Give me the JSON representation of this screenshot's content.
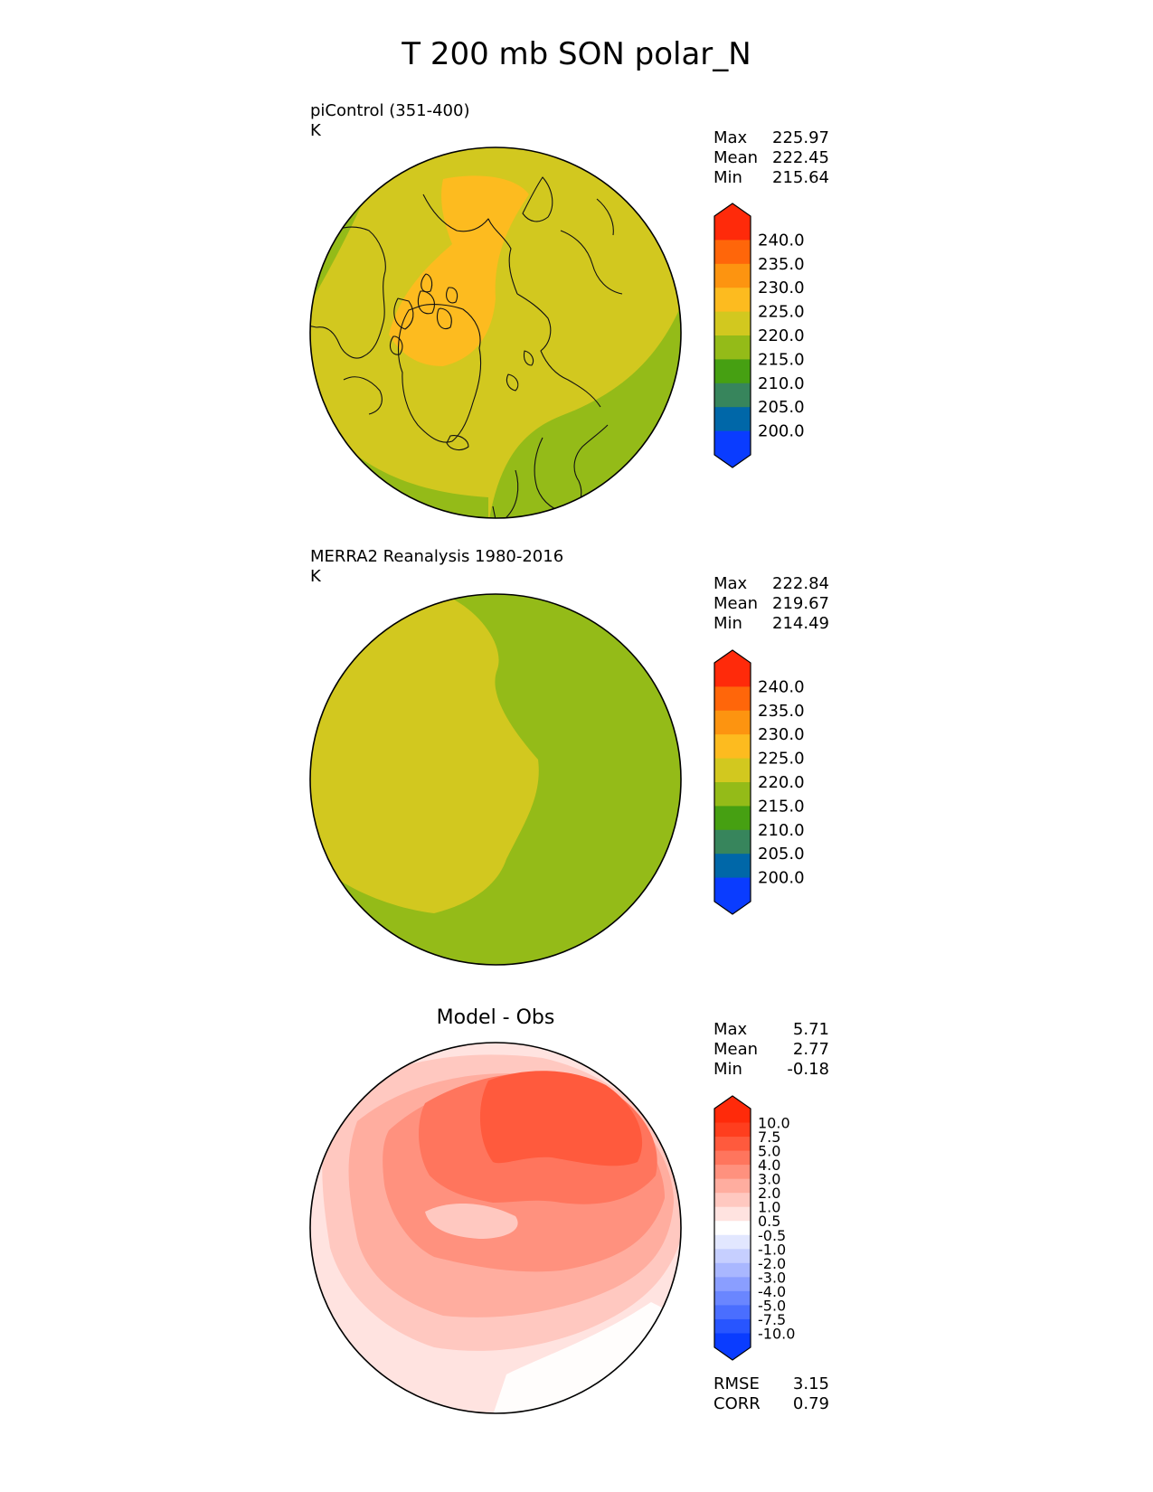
{
  "figure": {
    "title": "T 200 mb SON polar_N"
  },
  "panels": [
    {
      "title": "piControl (351-400)",
      "units": "K",
      "stats": [
        {
          "label": "Max",
          "value": "225.97"
        },
        {
          "label": "Mean",
          "value": "222.45"
        },
        {
          "label": "Min",
          "value": "215.64"
        }
      ]
    },
    {
      "title": "MERRA2 Reanalysis 1980-2016",
      "units": "K",
      "stats": [
        {
          "label": "Max",
          "value": "222.84"
        },
        {
          "label": "Mean",
          "value": "219.67"
        },
        {
          "label": "Min",
          "value": "214.49"
        }
      ]
    },
    {
      "title": "Model - Obs",
      "units": "",
      "stats": [
        {
          "label": "Max",
          "value": "5.71"
        },
        {
          "label": "Mean",
          "value": "2.77"
        },
        {
          "label": "Min",
          "value": "-0.18"
        }
      ],
      "metrics": [
        {
          "label": "RMSE",
          "value": "3.15"
        },
        {
          "label": "CORR",
          "value": "0.79"
        }
      ]
    }
  ],
  "chart_data": [
    {
      "type": "heatmap",
      "projection": "north-polar-stereographic",
      "colorbar": {
        "levels": [
          200.0,
          205.0,
          210.0,
          215.0,
          220.0,
          225.0,
          230.0,
          235.0,
          240.0
        ],
        "tick_labels": [
          "200.0",
          "205.0",
          "210.0",
          "215.0",
          "220.0",
          "225.0",
          "230.0",
          "235.0",
          "240.0"
        ],
        "colors": [
          "#0a3cff",
          "#0067a8",
          "#37855c",
          "#46a012",
          "#94bb18",
          "#d2c81f",
          "#fdbb1f",
          "#fd9410",
          "#ff660a",
          "#ff2a0a"
        ],
        "extend": "both"
      },
      "field_bands": [
        "#94bb18",
        "#d2c81f",
        "#fdbb1f"
      ]
    },
    {
      "type": "heatmap",
      "projection": "north-polar-stereographic",
      "colorbar": {
        "levels": [
          200.0,
          205.0,
          210.0,
          215.0,
          220.0,
          225.0,
          230.0,
          235.0,
          240.0
        ],
        "tick_labels": [
          "200.0",
          "205.0",
          "210.0",
          "215.0",
          "220.0",
          "225.0",
          "230.0",
          "235.0",
          "240.0"
        ],
        "colors": [
          "#0a3cff",
          "#0067a8",
          "#37855c",
          "#46a012",
          "#94bb18",
          "#d2c81f",
          "#fdbb1f",
          "#fd9410",
          "#ff660a",
          "#ff2a0a"
        ],
        "extend": "both"
      },
      "field_bands": [
        "#94bb18",
        "#d2c81f"
      ]
    },
    {
      "type": "heatmap",
      "projection": "north-polar-stereographic",
      "colorbar": {
        "levels": [
          -10.0,
          -7.5,
          -5.0,
          -4.0,
          -3.0,
          -2.0,
          -1.0,
          -0.5,
          0.5,
          1.0,
          2.0,
          3.0,
          4.0,
          5.0,
          7.5,
          10.0
        ],
        "tick_labels": [
          "-10.0",
          "-7.5",
          "-5.0",
          "-4.0",
          "-3.0",
          "-2.0",
          "-1.0",
          "-0.5",
          "0.5",
          "1.0",
          "2.0",
          "3.0",
          "4.0",
          "5.0",
          "7.5",
          "10.0"
        ],
        "colors": [
          "#0a3cff",
          "#2855ff",
          "#4a6eff",
          "#6a86ff",
          "#8a9eff",
          "#a9b7ff",
          "#c6cfff",
          "#e2e7ff",
          "#ffffff",
          "#ffe3e0",
          "#ffc8c0",
          "#ffad9f",
          "#ff917e",
          "#ff755d",
          "#ff5a3d",
          "#ff3e1e",
          "#ff2a0a"
        ],
        "extend": "both"
      },
      "field_bands": [
        "#ffe3e0",
        "#ffc8c0",
        "#ffad9f",
        "#ff917e",
        "#ff755d",
        "#ff5a3d"
      ]
    }
  ]
}
